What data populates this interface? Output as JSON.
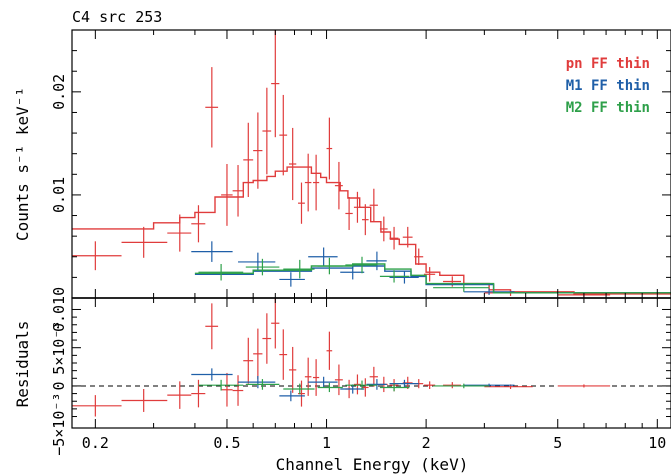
{
  "chart_data": {
    "type": "scatter",
    "title": "C4 src 253",
    "xlabel": "Channel Energy (keV)",
    "x_scale": "log",
    "xlim": [
      0.17,
      11
    ],
    "x_ticks": [
      {
        "v": 0.2,
        "label": "0.2"
      },
      {
        "v": 0.5,
        "label": "0.5"
      },
      {
        "v": 1,
        "label": "1"
      },
      {
        "v": 2,
        "label": "2"
      },
      {
        "v": 5,
        "label": "5"
      },
      {
        "v": 10,
        "label": "10"
      }
    ],
    "top_panel": {
      "ylabel": "Counts s⁻¹ keV⁻¹",
      "ylim": [
        0,
        0.026
      ],
      "y_ticks": [
        {
          "v": 0.01,
          "label": "0.01"
        },
        {
          "v": 0.02,
          "label": "0.02"
        }
      ]
    },
    "bottom_panel": {
      "ylabel": "Residuals",
      "ylim": [
        -0.0055,
        0.0115
      ],
      "y_ticks": [
        {
          "v": 0.01,
          "label": "0.010"
        },
        {
          "v": 0.005,
          "label": "5×10⁻³"
        },
        {
          "v": 0,
          "label": "0"
        },
        {
          "v": -0.005,
          "label": "−5×10⁻³"
        }
      ],
      "zero_line": true
    },
    "legend": {
      "placement": "top-right"
    },
    "series": [
      {
        "name": "pn FF thin",
        "color": "#e03c3c",
        "model_edges": [
          0.17,
          0.3,
          0.36,
          0.4,
          0.46,
          0.56,
          0.6,
          0.66,
          0.7,
          0.76,
          0.9,
          0.96,
          1.0,
          1.1,
          1.16,
          1.26,
          1.36,
          1.46,
          1.56,
          1.66,
          1.86,
          2.0,
          2.2,
          2.6,
          3.1,
          3.6,
          5.6,
          11
        ],
        "model_values": [
          0.0067,
          0.0073,
          0.0078,
          0.0083,
          0.0098,
          0.0112,
          0.0114,
          0.0118,
          0.0123,
          0.0127,
          0.0121,
          0.0117,
          0.0112,
          0.0104,
          0.0097,
          0.0088,
          0.0074,
          0.0064,
          0.0057,
          0.0052,
          0.0033,
          0.0025,
          0.0022,
          0.0014,
          0.0008,
          0.0006,
          0.0004
        ],
        "points": [
          {
            "x": 0.2,
            "xlo": 0.17,
            "xhi": 0.24,
            "y": 0.0041,
            "yerr": 0.0014,
            "res": -0.0026,
            "rerr": 0.0014
          },
          {
            "x": 0.28,
            "xlo": 0.24,
            "xhi": 0.33,
            "y": 0.0054,
            "yerr": 0.0015,
            "res": -0.0019,
            "rerr": 0.0015
          },
          {
            "x": 0.36,
            "xlo": 0.33,
            "xhi": 0.39,
            "y": 0.0063,
            "yerr": 0.0018,
            "res": -0.0012,
            "rerr": 0.0018
          },
          {
            "x": 0.41,
            "xlo": 0.39,
            "xhi": 0.43,
            "y": 0.0072,
            "yerr": 0.0018,
            "res": -0.001,
            "rerr": 0.0018
          },
          {
            "x": 0.45,
            "xlo": 0.43,
            "xhi": 0.47,
            "y": 0.0185,
            "yerr": 0.0039,
            "res": 0.0078,
            "rerr": 0.003
          },
          {
            "x": 0.5,
            "xlo": 0.48,
            "xhi": 0.52,
            "y": 0.01,
            "yerr": 0.003,
            "res": -0.0005,
            "rerr": 0.0022
          },
          {
            "x": 0.54,
            "xlo": 0.52,
            "xhi": 0.56,
            "y": 0.0104,
            "yerr": 0.0025,
            "res": -0.0006,
            "rerr": 0.002
          },
          {
            "x": 0.58,
            "xlo": 0.56,
            "xhi": 0.6,
            "y": 0.0134,
            "yerr": 0.0036,
            "res": 0.0033,
            "rerr": 0.003
          },
          {
            "x": 0.62,
            "xlo": 0.6,
            "xhi": 0.64,
            "y": 0.0143,
            "yerr": 0.0037,
            "res": 0.0042,
            "rerr": 0.0033
          },
          {
            "x": 0.66,
            "xlo": 0.64,
            "xhi": 0.68,
            "y": 0.0162,
            "yerr": 0.0042,
            "res": 0.0062,
            "rerr": 0.0033
          },
          {
            "x": 0.7,
            "xlo": 0.68,
            "xhi": 0.72,
            "y": 0.0208,
            "yerr": 0.0052,
            "res": 0.0082,
            "rerr": 0.0033
          },
          {
            "x": 0.74,
            "xlo": 0.72,
            "xhi": 0.76,
            "y": 0.0158,
            "yerr": 0.0039,
            "res": 0.0041,
            "rerr": 0.0033
          },
          {
            "x": 0.79,
            "xlo": 0.77,
            "xhi": 0.81,
            "y": 0.013,
            "yerr": 0.0035,
            "res": 0.0021,
            "rerr": 0.003
          },
          {
            "x": 0.84,
            "xlo": 0.82,
            "xhi": 0.86,
            "y": 0.0092,
            "yerr": 0.002,
            "res": -0.001,
            "rerr": 0.0017
          },
          {
            "x": 0.88,
            "xlo": 0.86,
            "xhi": 0.9,
            "y": 0.0112,
            "yerr": 0.0028,
            "res": 0.0012,
            "rerr": 0.0025
          },
          {
            "x": 0.93,
            "xlo": 0.91,
            "xhi": 0.95,
            "y": 0.0112,
            "yerr": 0.0027,
            "res": 0.0011,
            "rerr": 0.0024
          },
          {
            "x": 1.02,
            "xlo": 1.0,
            "xhi": 1.04,
            "y": 0.0145,
            "yerr": 0.003,
            "res": 0.0046,
            "rerr": 0.0025
          },
          {
            "x": 1.09,
            "xlo": 1.06,
            "xhi": 1.12,
            "y": 0.0109,
            "yerr": 0.0023,
            "res": 0.0008,
            "rerr": 0.002
          },
          {
            "x": 1.17,
            "xlo": 1.14,
            "xhi": 1.2,
            "y": 0.0082,
            "yerr": 0.0016,
            "res": -0.0004,
            "rerr": 0.0012
          },
          {
            "x": 1.24,
            "xlo": 1.21,
            "xhi": 1.27,
            "y": 0.0088,
            "yerr": 0.0015,
            "res": 0.0002,
            "rerr": 0.0013
          },
          {
            "x": 1.31,
            "xlo": 1.28,
            "xhi": 1.34,
            "y": 0.0076,
            "yerr": 0.0015,
            "res": -0.0002,
            "rerr": 0.0012
          },
          {
            "x": 1.39,
            "xlo": 1.35,
            "xhi": 1.43,
            "y": 0.009,
            "yerr": 0.0016,
            "res": 0.0012,
            "rerr": 0.0013
          },
          {
            "x": 1.49,
            "xlo": 1.45,
            "xhi": 1.53,
            "y": 0.0067,
            "yerr": 0.0012,
            "res": 0.0002,
            "rerr": 0.001
          },
          {
            "x": 1.6,
            "xlo": 1.55,
            "xhi": 1.65,
            "y": 0.0058,
            "yerr": 0.0011,
            "res": 0.0001,
            "rerr": 0.0008
          },
          {
            "x": 1.76,
            "xlo": 1.7,
            "xhi": 1.82,
            "y": 0.0059,
            "yerr": 0.001,
            "res": 0.0004,
            "rerr": 0.0008
          },
          {
            "x": 1.9,
            "xlo": 1.84,
            "xhi": 1.96,
            "y": 0.004,
            "yerr": 0.0008,
            "res": 0.0003,
            "rerr": 0.0006
          },
          {
            "x": 2.05,
            "xlo": 1.97,
            "xhi": 2.13,
            "y": 0.0023,
            "yerr": 0.0007,
            "res": 0.0001,
            "rerr": 0.0005
          },
          {
            "x": 2.4,
            "xlo": 2.25,
            "xhi": 2.55,
            "y": 0.0016,
            "yerr": 0.0005,
            "res": 0.0001,
            "rerr": 0.0004
          },
          {
            "x": 3.6,
            "xlo": 3.0,
            "xhi": 4.2,
            "y": 0.0005,
            "yerr": 0.0003,
            "res": -0.0001,
            "rerr": 0.0003
          },
          {
            "x": 6.0,
            "xlo": 5.0,
            "xhi": 7.2,
            "y": 0.0003,
            "yerr": 0.0002,
            "res": 0.0,
            "rerr": 0.0002
          }
        ]
      },
      {
        "name": "M1 FF thin",
        "color": "#1f5fa8",
        "model_edges": [
          0.4,
          0.6,
          0.9,
          1.2,
          1.5,
          1.8,
          2.0,
          3.2,
          11
        ],
        "model_values": [
          0.0023,
          0.0026,
          0.0029,
          0.0031,
          0.0026,
          0.0021,
          0.0013,
          0.0005
        ],
        "points": [
          {
            "x": 0.45,
            "xlo": 0.39,
            "xhi": 0.52,
            "y": 0.0045,
            "yerr": 0.001,
            "res": 0.0015,
            "rerr": 0.0008
          },
          {
            "x": 0.62,
            "xlo": 0.54,
            "xhi": 0.7,
            "y": 0.0035,
            "yerr": 0.0009,
            "res": 0.0005,
            "rerr": 0.0008
          },
          {
            "x": 0.78,
            "xlo": 0.72,
            "xhi": 0.86,
            "y": 0.0018,
            "yerr": 0.0007,
            "res": -0.0013,
            "rerr": 0.0007
          },
          {
            "x": 0.98,
            "xlo": 0.88,
            "xhi": 1.08,
            "y": 0.004,
            "yerr": 0.0009,
            "res": 0.0005,
            "rerr": 0.0007
          },
          {
            "x": 1.2,
            "xlo": 1.1,
            "xhi": 1.3,
            "y": 0.0025,
            "yerr": 0.0007,
            "res": -0.0004,
            "rerr": 0.0006
          },
          {
            "x": 1.42,
            "xlo": 1.32,
            "xhi": 1.52,
            "y": 0.0036,
            "yerr": 0.0009,
            "res": 0.0002,
            "rerr": 0.0007
          },
          {
            "x": 1.72,
            "xlo": 1.55,
            "xhi": 1.9,
            "y": 0.002,
            "yerr": 0.0006,
            "res": 0.0003,
            "rerr": 0.0005
          },
          {
            "x": 3.1,
            "xlo": 2.6,
            "xhi": 3.7,
            "y": 0.0006,
            "yerr": 0.0003,
            "res": 0.0001,
            "rerr": 0.0002
          }
        ]
      },
      {
        "name": "M2 FF thin",
        "color": "#2ea04a",
        "model_edges": [
          0.4,
          0.6,
          0.9,
          1.2,
          1.5,
          1.8,
          2.0,
          3.2,
          11
        ],
        "model_values": [
          0.0024,
          0.0027,
          0.0031,
          0.0033,
          0.0028,
          0.0022,
          0.0014,
          0.0005
        ],
        "points": [
          {
            "x": 0.48,
            "xlo": 0.41,
            "xhi": 0.56,
            "y": 0.0025,
            "yerr": 0.0008,
            "res": 0.0001,
            "rerr": 0.0007
          },
          {
            "x": 0.64,
            "xlo": 0.57,
            "xhi": 0.72,
            "y": 0.003,
            "yerr": 0.0008,
            "res": 0.0002,
            "rerr": 0.0007
          },
          {
            "x": 0.83,
            "xlo": 0.74,
            "xhi": 0.92,
            "y": 0.0028,
            "yerr": 0.0009,
            "res": -0.0004,
            "rerr": 0.0007
          },
          {
            "x": 1.02,
            "xlo": 0.94,
            "xhi": 1.12,
            "y": 0.0031,
            "yerr": 0.0008,
            "res": -0.0002,
            "rerr": 0.0006
          },
          {
            "x": 1.28,
            "xlo": 1.14,
            "xhi": 1.42,
            "y": 0.0032,
            "yerr": 0.0008,
            "res": 0.0001,
            "rerr": 0.0006
          },
          {
            "x": 1.6,
            "xlo": 1.45,
            "xhi": 1.78,
            "y": 0.0021,
            "yerr": 0.0006,
            "res": -0.0002,
            "rerr": 0.0005
          },
          {
            "x": 2.6,
            "xlo": 2.1,
            "xhi": 3.1,
            "y": 0.001,
            "yerr": 0.0004,
            "res": 0.0,
            "rerr": 0.0003
          }
        ]
      }
    ]
  }
}
